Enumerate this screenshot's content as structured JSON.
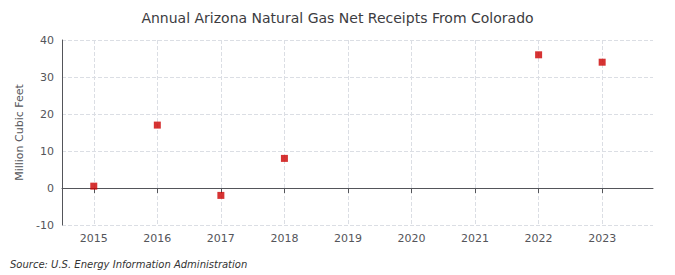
{
  "chart_data": {
    "type": "scatter",
    "title": "Annual Arizona Natural Gas Net Receipts From Colorado",
    "ylabel": "Million Cubic Feet",
    "annotations": [
      "Source: U.S. Energy Information Administration"
    ],
    "x": [
      2015,
      2016,
      2017,
      2018,
      2022,
      2023
    ],
    "values": [
      0.5,
      17,
      -2,
      8,
      36,
      34
    ],
    "color": "#CC0000",
    "marker": "square",
    "xlim": [
      2014.5,
      2023.8
    ],
    "xticks": [
      2015,
      2016,
      2017,
      2018,
      2019,
      2020,
      2021,
      2022,
      2023
    ],
    "ylim": [
      -10,
      40
    ],
    "yticks": [
      -10,
      0,
      10,
      20,
      30,
      40
    ],
    "grid": true
  }
}
